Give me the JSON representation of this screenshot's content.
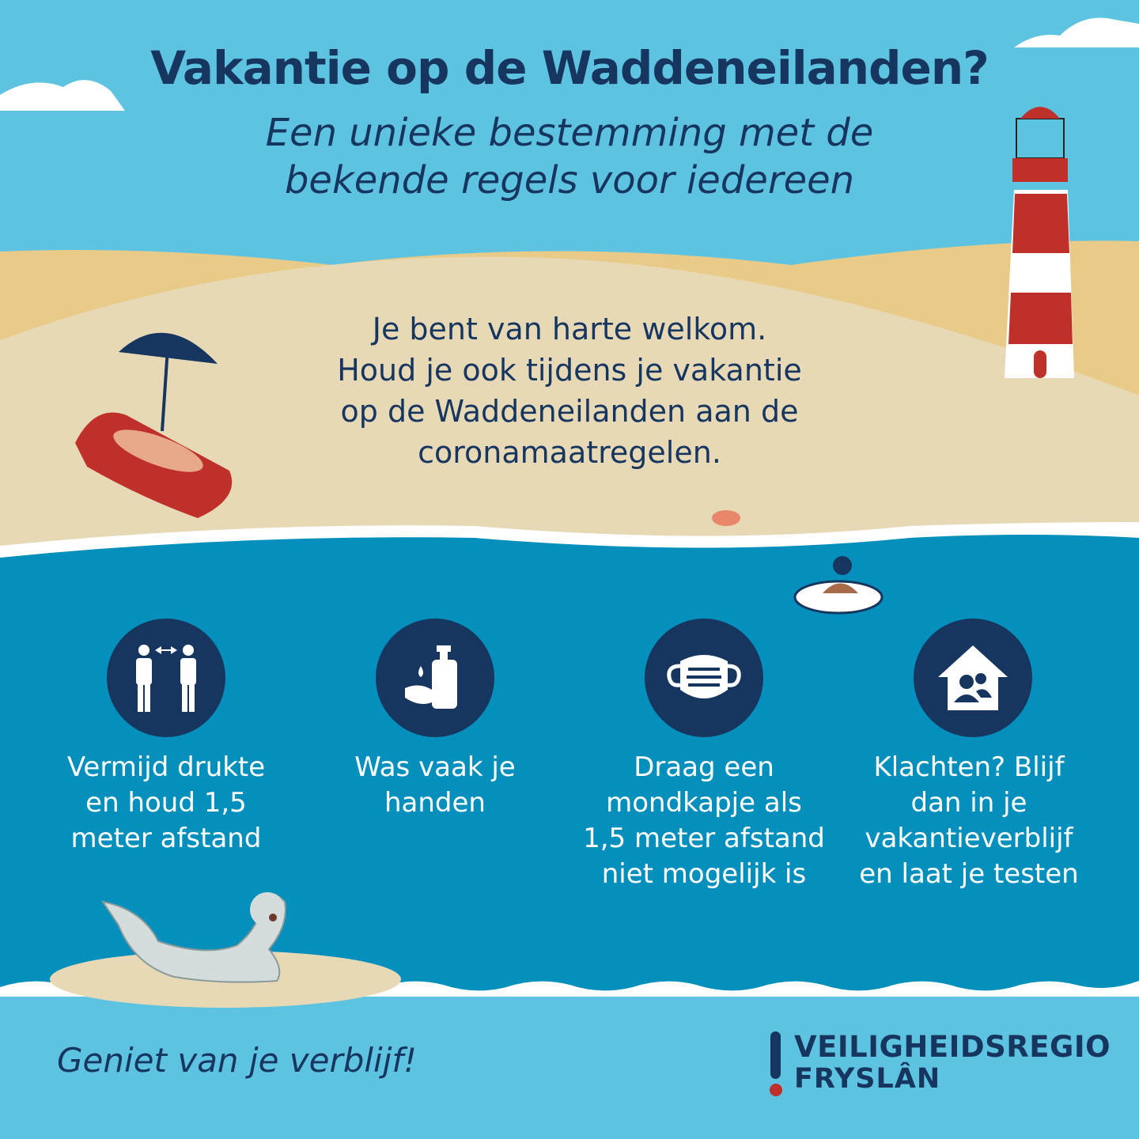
{
  "colors": {
    "sky": "#5ec3e0",
    "sand": "#e8d9b6",
    "dune": "#e8cb88",
    "sea": "#058fbc",
    "navy": "#17365f",
    "red": "#c0302a",
    "white": "#ffffff"
  },
  "header": {
    "title": "Vakantie op de Waddeneilanden?",
    "subtitle_lines": [
      "Een unieke bestemming met de",
      "bekende regels voor iedereen"
    ]
  },
  "welcome": {
    "lines": [
      "Je bent van harte welkom.",
      "Houd je ook tijdens je vakantie",
      "op de Waddeneilanden aan de",
      "coronamaatregelen."
    ]
  },
  "rules": [
    {
      "icon": "social-distance-icon",
      "lines": [
        "Vermijd drukte",
        "en houd 1,5",
        "meter afstand"
      ]
    },
    {
      "icon": "hand-wash-icon",
      "lines": [
        "Was vaak je",
        "handen"
      ]
    },
    {
      "icon": "face-mask-icon",
      "lines": [
        "Draag een",
        "mondkapje als",
        "1,5 meter afstand",
        "niet mogelijk is"
      ]
    },
    {
      "icon": "house-people-icon",
      "lines": [
        "Klachten? Blijf",
        "dan in je",
        "vakantieverblijf",
        "en laat je testen"
      ]
    }
  ],
  "footer": {
    "tagline": "Geniet van je verblijf!",
    "logo_line1": "VEILIGHEIDSREGIO",
    "logo_line2": "FRYSLÂN"
  }
}
